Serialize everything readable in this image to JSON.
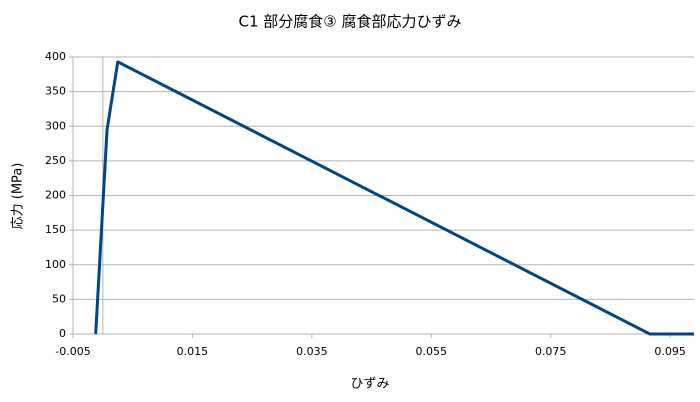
{
  "chart_data": {
    "type": "line",
    "title": "C1 部分腐食③ 腐食部応力ひずみ",
    "x_label": "ひずみ",
    "y_label": "応力 (MPa)",
    "x": [
      -0.0012,
      0.0007,
      0.0025,
      0.0916,
      0.099
    ],
    "series": [
      {
        "name": "応力",
        "color": "#004586",
        "values": [
          0,
          295,
          393,
          0,
          0
        ]
      }
    ],
    "xlim": [
      -0.005,
      0.099
    ],
    "xticks": [
      -0.005,
      0.015,
      0.035,
      0.055,
      0.075,
      0.095
    ],
    "ylim": [
      0,
      400
    ],
    "yticks": [
      0,
      50,
      100,
      150,
      200,
      250,
      300,
      350,
      400
    ],
    "grid": true,
    "legend": false
  }
}
